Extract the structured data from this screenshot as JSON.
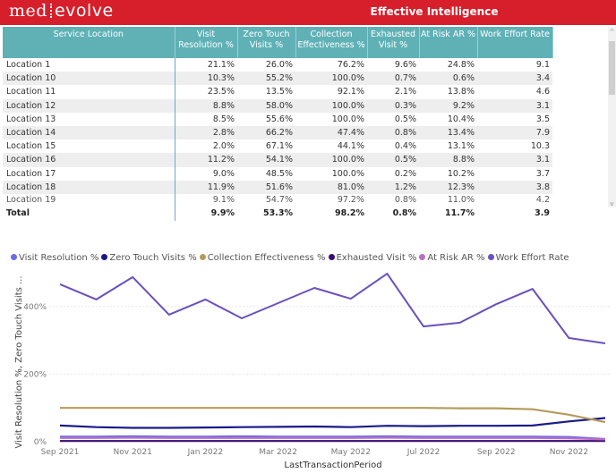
{
  "header": {
    "logo_left": "med",
    "logo_right": "evolve",
    "title": "Effective Intelligence",
    "brand_color": "#d61f2b"
  },
  "table": {
    "header_color": "#5fb1b6",
    "columns": [
      "Service Location",
      "Visit Resolution %",
      "Zero Touch Visits %",
      "Collection Effectiveness %",
      "Exhausted Visit %",
      "At Risk AR %",
      "Work Effort Rate"
    ],
    "column_lines": [
      [
        "Service Location",
        ""
      ],
      [
        "Visit",
        "Resolution %"
      ],
      [
        "Zero Touch",
        "Visits %"
      ],
      [
        "Collection",
        "Effectiveness %"
      ],
      [
        "Exhausted",
        "Visit %"
      ],
      [
        "At Risk AR %",
        ""
      ],
      [
        "Work Effort Rate",
        ""
      ]
    ],
    "rows": [
      [
        "Location 1",
        "21.1%",
        "26.0%",
        "76.2%",
        "9.6%",
        "24.8%",
        "9.1"
      ],
      [
        "Location 10",
        "10.3%",
        "55.2%",
        "100.0%",
        "0.7%",
        "0.6%",
        "3.4"
      ],
      [
        "Location 11",
        "23.5%",
        "13.5%",
        "92.1%",
        "2.1%",
        "13.8%",
        "4.6"
      ],
      [
        "Location 12",
        "8.8%",
        "58.0%",
        "100.0%",
        "0.3%",
        "9.2%",
        "3.1"
      ],
      [
        "Location 13",
        "8.5%",
        "55.6%",
        "100.0%",
        "0.5%",
        "10.4%",
        "3.5"
      ],
      [
        "Location 14",
        "2.8%",
        "66.2%",
        "47.4%",
        "0.8%",
        "13.4%",
        "7.9"
      ],
      [
        "Location 15",
        "2.0%",
        "67.1%",
        "44.1%",
        "0.4%",
        "13.1%",
        "10.3"
      ],
      [
        "Location 16",
        "11.2%",
        "54.1%",
        "100.0%",
        "0.5%",
        "8.8%",
        "3.1"
      ],
      [
        "Location 17",
        "9.0%",
        "48.5%",
        "100.0%",
        "0.2%",
        "10.2%",
        "3.7"
      ],
      [
        "Location 18",
        "11.9%",
        "51.6%",
        "81.0%",
        "1.2%",
        "12.3%",
        "3.8"
      ],
      [
        "Location 19",
        "9.1%",
        "54.7%",
        "97.2%",
        "0.8%",
        "11.0%",
        "4.2"
      ]
    ],
    "total": [
      "Total",
      "9.9%",
      "53.3%",
      "98.2%",
      "0.8%",
      "11.7%",
      "3.9"
    ]
  },
  "scrollbar": {
    "up_glyph": "^",
    "down_glyph": "v"
  },
  "chart_data": {
    "type": "line",
    "title": "",
    "xlabel": "LastTransactionPeriod",
    "ylabel": "Visit Resolution %, Zero Touch Visits ...",
    "ylim": [
      0,
      520
    ],
    "yticks": [
      0,
      200,
      400
    ],
    "ytick_labels": [
      "0%",
      "200%",
      "400%"
    ],
    "grid": true,
    "legend_position": "top-left",
    "x": [
      "Sep 2021",
      "Oct 2021",
      "Nov 2021",
      "Dec 2021",
      "Jan 2022",
      "Feb 2022",
      "Mar 2022",
      "Apr 2022",
      "May 2022",
      "Jun 2022",
      "Jul 2022",
      "Aug 2022",
      "Sep 2022",
      "Oct 2022",
      "Nov 2022",
      "Dec 2022"
    ],
    "xtick_labels": [
      "Sep 2021",
      "Nov 2021",
      "Jan 2022",
      "Mar 2022",
      "May 2022",
      "Jul 2022",
      "Sep 2022",
      "Nov 2022"
    ],
    "series": [
      {
        "name": "Visit Resolution %",
        "color": "#6b6bea",
        "values": [
          15,
          15,
          16,
          15,
          15,
          16,
          15,
          15,
          15,
          16,
          15,
          15,
          15,
          15,
          14,
          8
        ]
      },
      {
        "name": "Zero Touch Visits %",
        "color": "#1a1a8c",
        "values": [
          48,
          43,
          41,
          41,
          42,
          43,
          44,
          45,
          43,
          47,
          46,
          47,
          47,
          48,
          60,
          70
        ]
      },
      {
        "name": "Collection Effectiveness %",
        "color": "#b39b5a",
        "values": [
          100,
          100,
          100,
          100,
          100,
          100,
          100,
          100,
          100,
          100,
          100,
          99,
          99,
          96,
          80,
          58
        ]
      },
      {
        "name": "Exhausted Visit %",
        "color": "#3a0a6e",
        "values": [
          2,
          2,
          2,
          2,
          2,
          2,
          2,
          2,
          2,
          2,
          2,
          2,
          2,
          2,
          2,
          2
        ]
      },
      {
        "name": "At Risk AR %",
        "color": "#b86fc4",
        "values": [
          11,
          11,
          12,
          11,
          11,
          11,
          11,
          11,
          11,
          12,
          11,
          11,
          11,
          11,
          10,
          7
        ]
      },
      {
        "name": "Work Effort Rate",
        "color": "#6a4fbf",
        "values": [
          466,
          421,
          487,
          376,
          421,
          365,
          410,
          455,
          423,
          497,
          341,
          352,
          407,
          452,
          307,
          291
        ]
      }
    ]
  }
}
